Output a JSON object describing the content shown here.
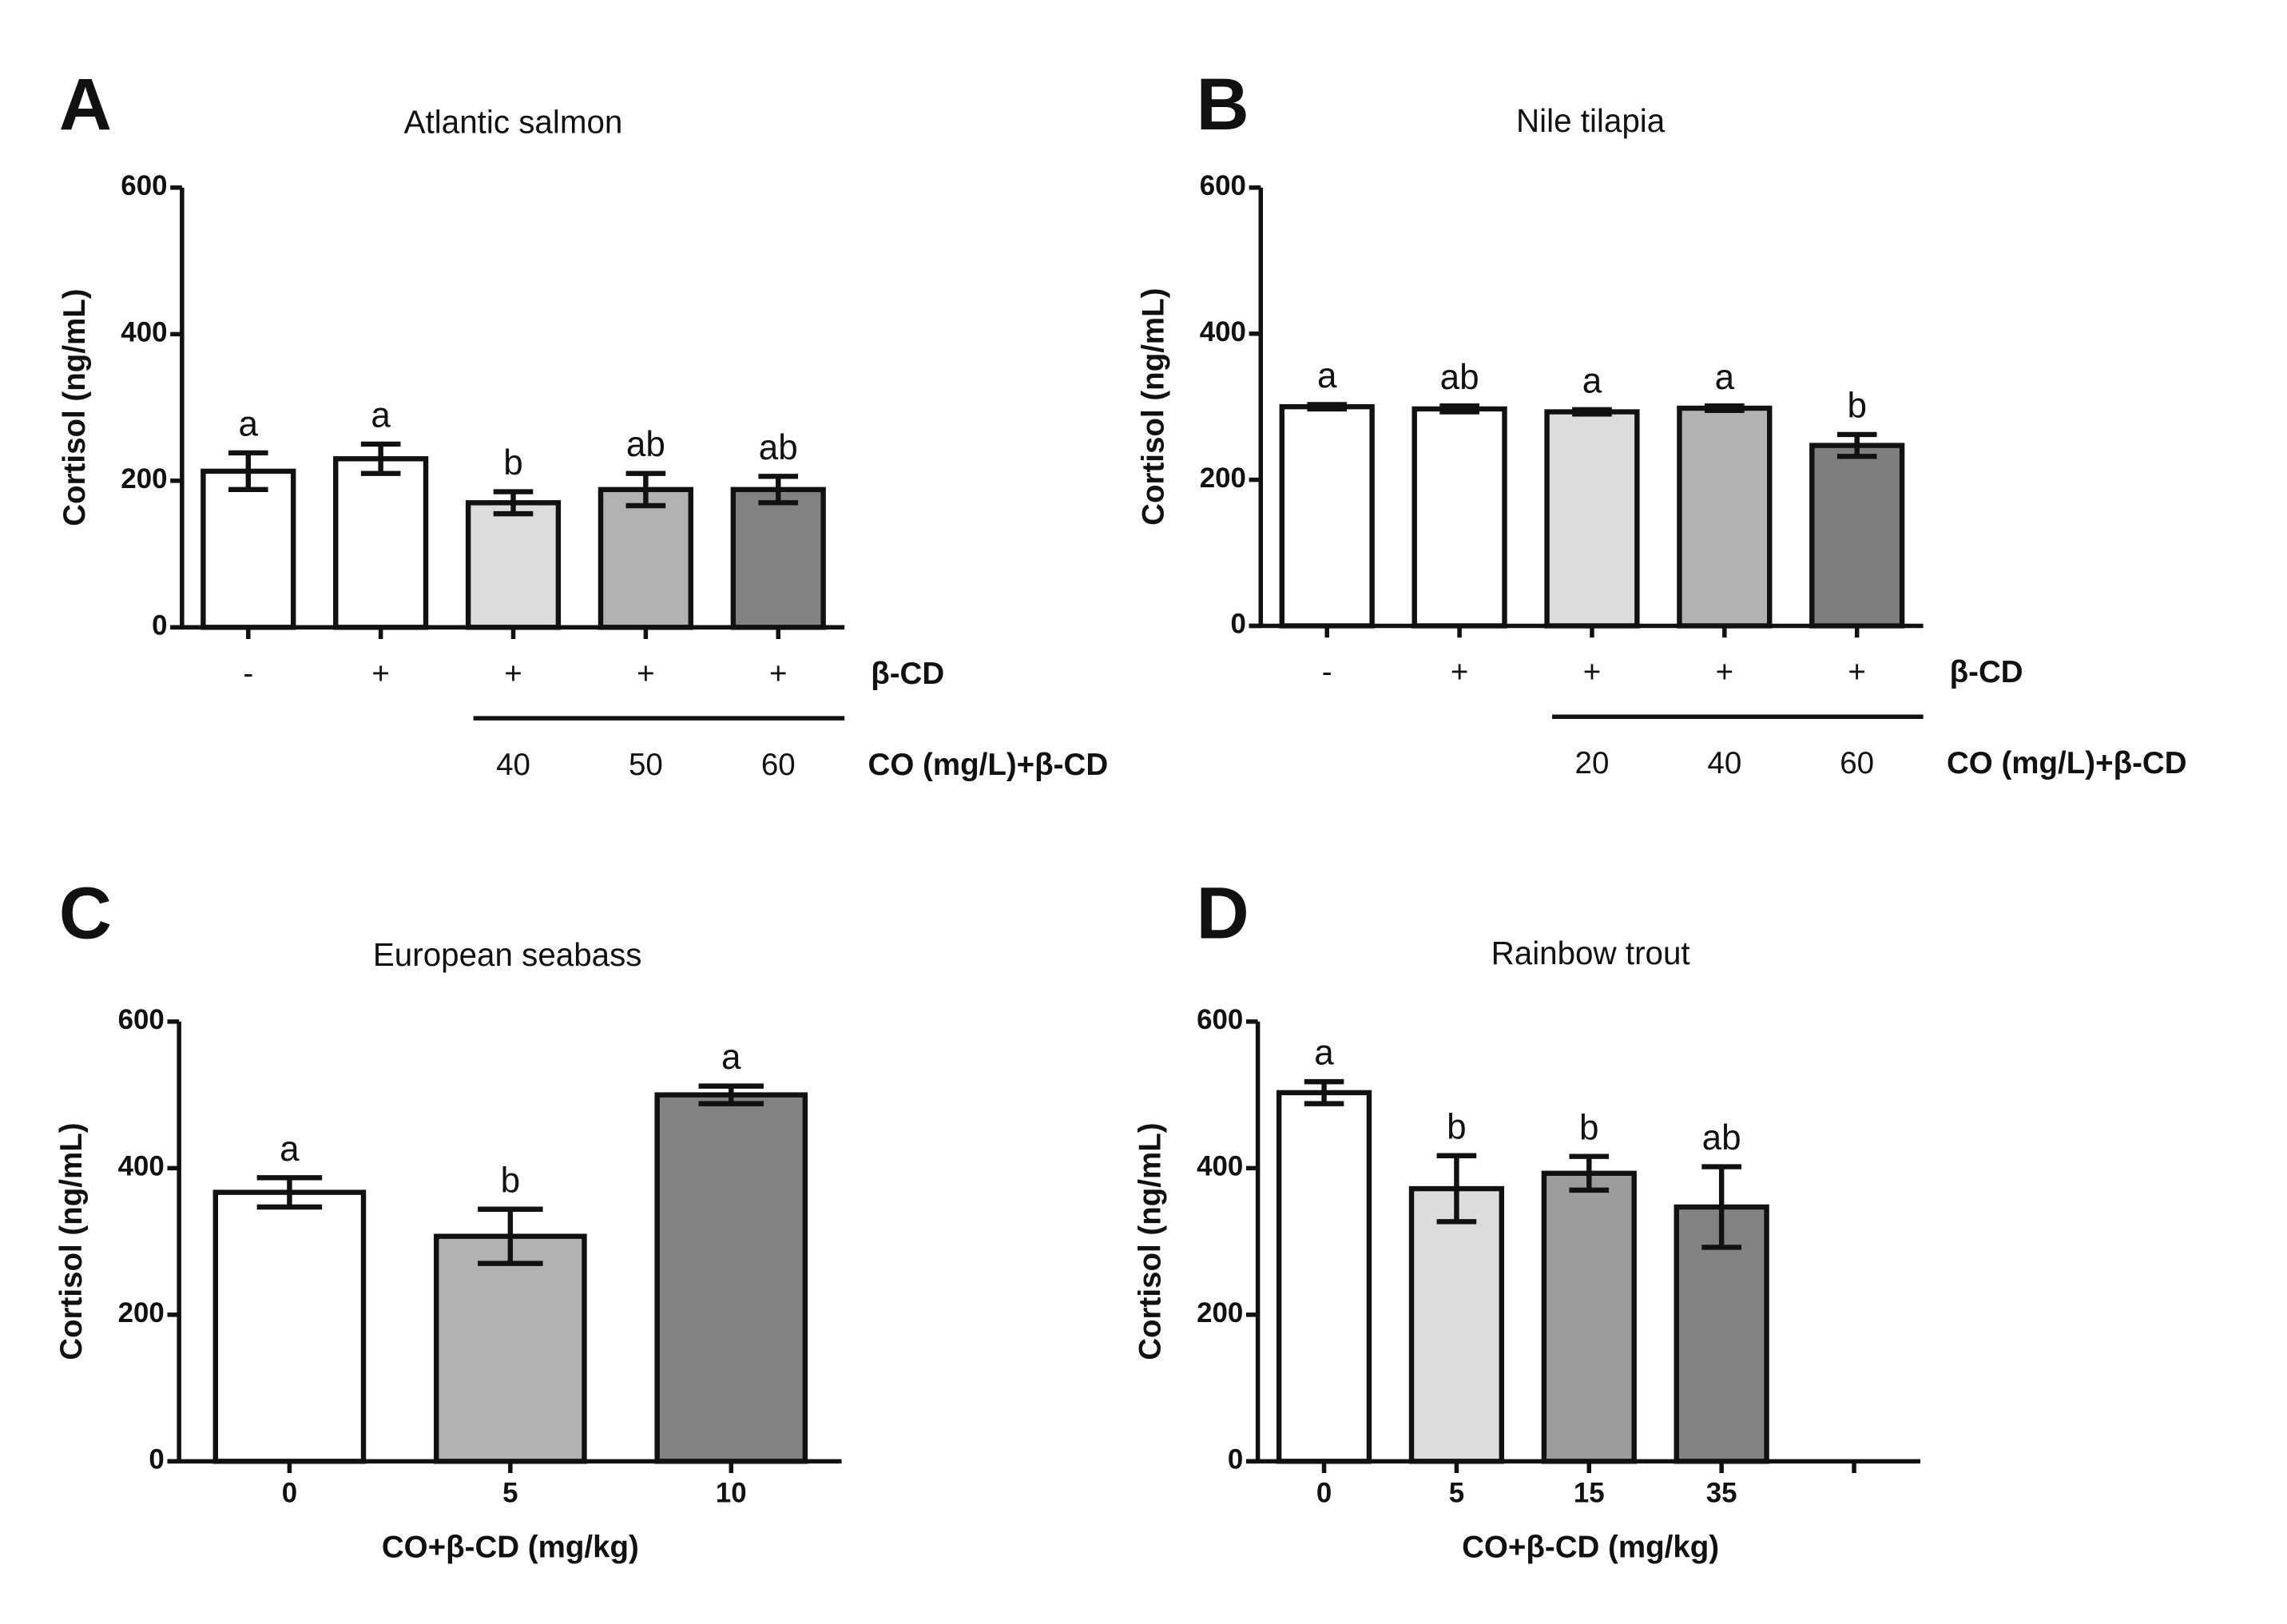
{
  "chart_data": [
    {
      "type": "bar",
      "panel": "A",
      "title": "Atlantic salmon",
      "ylabel": "Cortisol (ng/mL)",
      "categories": [
        null,
        null,
        "40",
        "50",
        "60"
      ],
      "category_label": "CO (mg/L)+β-CD",
      "beta_cd": [
        "-",
        "+",
        "+",
        "+",
        "+"
      ],
      "beta_cd_label": "β-CD",
      "values": [
        213,
        230,
        170,
        188,
        188
      ],
      "errors": [
        25,
        20,
        15,
        22,
        18
      ],
      "annotations": [
        "a",
        "a",
        "b",
        "ab",
        "ab"
      ],
      "colors": [
        "#ffffff",
        "#ffffff",
        "#dcdcdc",
        "#b2b2b2",
        "#828282"
      ],
      "ylim": [
        0,
        600
      ],
      "yticks": [
        0,
        200,
        400,
        600
      ]
    },
    {
      "type": "bar",
      "panel": "B",
      "title": "Nile tilapia",
      "ylabel": "Cortisol (ng/mL)",
      "categories": [
        null,
        null,
        "20",
        "40",
        "60"
      ],
      "category_label": "CO (mg/L)+β-CD",
      "beta_cd": [
        "-",
        "+",
        "+",
        "+",
        "+"
      ],
      "beta_cd_label": "β-CD",
      "values": [
        300,
        297,
        293,
        298,
        247
      ],
      "errors": [
        3,
        4,
        3,
        3,
        15
      ],
      "annotations": [
        "a",
        "ab",
        "a",
        "a",
        "b"
      ],
      "colors": [
        "#ffffff",
        "#ffffff",
        "#dcdcdc",
        "#b2b2b2",
        "#7f7f7f"
      ],
      "ylim": [
        0,
        600
      ],
      "yticks": [
        0,
        200,
        400,
        600
      ]
    },
    {
      "type": "bar",
      "panel": "C",
      "title": "European seabass",
      "ylabel": "Cortisol (ng/mL)",
      "categories": [
        "0",
        "5",
        "10"
      ],
      "xlabel": "CO+β-CD (mg/kg)",
      "values": [
        367,
        307,
        500
      ],
      "errors": [
        20,
        37,
        12
      ],
      "annotations": [
        "a",
        "b",
        "a"
      ],
      "colors": [
        "#ffffff",
        "#b2b2b2",
        "#828282"
      ],
      "ylim": [
        0,
        600
      ],
      "yticks": [
        0,
        200,
        400,
        600
      ]
    },
    {
      "type": "bar",
      "panel": "D",
      "title": "Rainbow trout",
      "ylabel": "Cortisol (ng/mL)",
      "categories": [
        "0",
        "5",
        "15",
        "35",
        null
      ],
      "xlabel": "CO+β-CD (mg/kg)",
      "values": [
        503,
        372,
        393,
        347,
        null
      ],
      "errors": [
        15,
        45,
        23,
        55,
        null
      ],
      "annotations": [
        "a",
        "b",
        "b",
        "ab",
        null
      ],
      "colors": [
        "#ffffff",
        "#dcdcdc",
        "#9c9c9c",
        "#828282",
        null
      ],
      "ylim": [
        0,
        600
      ],
      "yticks": [
        0,
        200,
        400,
        600
      ]
    }
  ]
}
